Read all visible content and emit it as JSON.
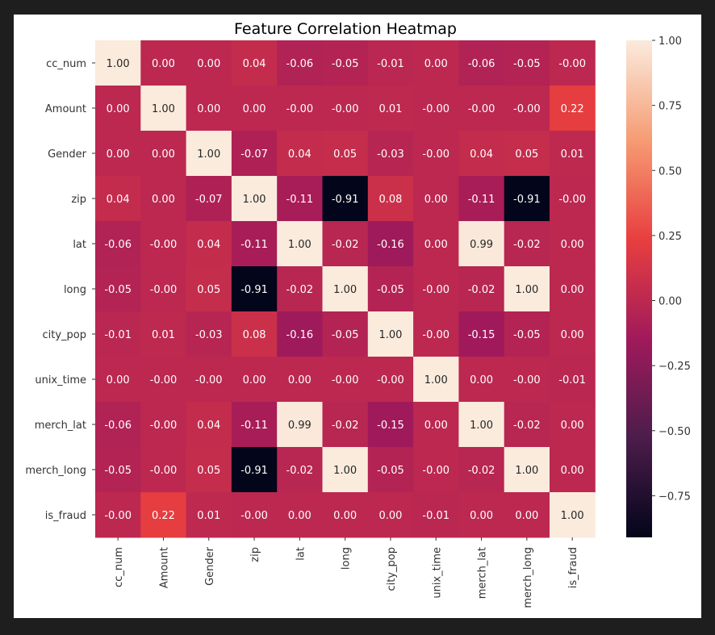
{
  "chart_data": {
    "type": "heatmap",
    "title": "Feature Correlation Heatmap",
    "row_labels": [
      "cc_num",
      "Amount",
      "Gender",
      "zip",
      "lat",
      "long",
      "city_pop",
      "unix_time",
      "merch_lat",
      "merch_long",
      "is_fraud"
    ],
    "col_labels": [
      "cc_num",
      "Amount",
      "Gender",
      "zip",
      "lat",
      "long",
      "city_pop",
      "unix_time",
      "merch_lat",
      "merch_long",
      "is_fraud"
    ],
    "values": [
      [
        1.0,
        0.0,
        0.0,
        0.04,
        -0.06,
        -0.05,
        -0.01,
        0.0,
        -0.06,
        -0.05,
        -0.0
      ],
      [
        0.0,
        1.0,
        0.0,
        0.0,
        -0.0,
        -0.0,
        0.01,
        -0.0,
        -0.0,
        -0.0,
        0.22
      ],
      [
        0.0,
        0.0,
        1.0,
        -0.07,
        0.04,
        0.05,
        -0.03,
        -0.0,
        0.04,
        0.05,
        0.01
      ],
      [
        0.04,
        0.0,
        -0.07,
        1.0,
        -0.11,
        -0.91,
        0.08,
        0.0,
        -0.11,
        -0.91,
        -0.0
      ],
      [
        -0.06,
        -0.0,
        0.04,
        -0.11,
        1.0,
        -0.02,
        -0.16,
        0.0,
        0.99,
        -0.02,
        0.0
      ],
      [
        -0.05,
        -0.0,
        0.05,
        -0.91,
        -0.02,
        1.0,
        -0.05,
        -0.0,
        -0.02,
        1.0,
        0.0
      ],
      [
        -0.01,
        0.01,
        -0.03,
        0.08,
        -0.16,
        -0.05,
        1.0,
        -0.0,
        -0.15,
        -0.05,
        0.0
      ],
      [
        0.0,
        -0.0,
        -0.0,
        0.0,
        0.0,
        -0.0,
        -0.0,
        1.0,
        0.0,
        -0.0,
        -0.01
      ],
      [
        -0.06,
        -0.0,
        0.04,
        -0.11,
        0.99,
        -0.02,
        -0.15,
        0.0,
        1.0,
        -0.02,
        0.0
      ],
      [
        -0.05,
        -0.0,
        0.05,
        -0.91,
        -0.02,
        1.0,
        -0.05,
        -0.0,
        -0.02,
        1.0,
        0.0
      ],
      [
        -0.0,
        0.22,
        0.01,
        -0.0,
        0.0,
        0.0,
        0.0,
        -0.01,
        0.0,
        0.0,
        1.0
      ]
    ],
    "cell_text": [
      [
        "1.00",
        "0.00",
        "0.00",
        "0.04",
        "-0.06",
        "-0.05",
        "-0.01",
        "0.00",
        "-0.06",
        "-0.05",
        "-0.00"
      ],
      [
        "0.00",
        "1.00",
        "0.00",
        "0.00",
        "-0.00",
        "-0.00",
        "0.01",
        "-0.00",
        "-0.00",
        "-0.00",
        "0.22"
      ],
      [
        "0.00",
        "0.00",
        "1.00",
        "-0.07",
        "0.04",
        "0.05",
        "-0.03",
        "-0.00",
        "0.04",
        "0.05",
        "0.01"
      ],
      [
        "0.04",
        "0.00",
        "-0.07",
        "1.00",
        "-0.11",
        "-0.91",
        "0.08",
        "0.00",
        "-0.11",
        "-0.91",
        "-0.00"
      ],
      [
        "-0.06",
        "-0.00",
        "0.04",
        "-0.11",
        "1.00",
        "-0.02",
        "-0.16",
        "0.00",
        "0.99",
        "-0.02",
        "0.00"
      ],
      [
        "-0.05",
        "-0.00",
        "0.05",
        "-0.91",
        "-0.02",
        "1.00",
        "-0.05",
        "-0.00",
        "-0.02",
        "1.00",
        "0.00"
      ],
      [
        "-0.01",
        "0.01",
        "-0.03",
        "0.08",
        "-0.16",
        "-0.05",
        "1.00",
        "-0.00",
        "-0.15",
        "-0.05",
        "0.00"
      ],
      [
        "0.00",
        "-0.00",
        "-0.00",
        "0.00",
        "0.00",
        "-0.00",
        "-0.00",
        "1.00",
        "0.00",
        "-0.00",
        "-0.01"
      ],
      [
        "-0.06",
        "-0.00",
        "0.04",
        "-0.11",
        "0.99",
        "-0.02",
        "-0.15",
        "0.00",
        "1.00",
        "-0.02",
        "0.00"
      ],
      [
        "-0.05",
        "-0.00",
        "0.05",
        "-0.91",
        "-0.02",
        "1.00",
        "-0.05",
        "-0.00",
        "-0.02",
        "1.00",
        "0.00"
      ],
      [
        "-0.00",
        "0.22",
        "0.01",
        "-0.00",
        "0.00",
        "0.00",
        "0.00",
        "-0.01",
        "0.00",
        "0.00",
        "1.00"
      ]
    ],
    "colorbar": {
      "range": [
        -0.91,
        1.0
      ],
      "ticks": [
        1.0,
        0.75,
        0.5,
        0.25,
        0.0,
        -0.25,
        -0.5,
        -0.75
      ],
      "tick_labels": [
        "1.00",
        "0.75",
        "0.50",
        "0.25",
        "0.00",
        "−0.25",
        "−0.50",
        "−0.75"
      ]
    },
    "colormap": "rocket",
    "colormap_stops": [
      "#03051a",
      "#4c1d4b",
      "#a11a5b",
      "#e83f3f",
      "#f69c73",
      "#faebdd"
    ],
    "grid": false
  },
  "colors": {
    "page_background": "#1e1e1e",
    "figure_background": "#ffffff"
  }
}
